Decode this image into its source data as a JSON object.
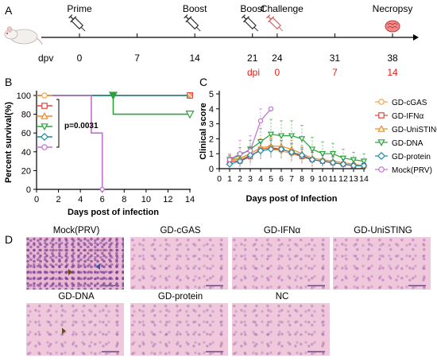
{
  "panels": {
    "a": "A",
    "b": "B",
    "c": "C",
    "d": "D"
  },
  "timeline": {
    "events": [
      {
        "label": "Prime",
        "day": "0"
      },
      {
        "label": "Boost",
        "day": "14"
      },
      {
        "label": "Boost",
        "day": "21"
      },
      {
        "label": "Challenge",
        "day": "24"
      },
      {
        "label": "Necropsy",
        "day": "38"
      }
    ],
    "dpv_label": "dpv",
    "dpv_ticks": [
      "0",
      "7",
      "14",
      "21",
      "24",
      "31",
      "38"
    ],
    "dpi_label": "dpi",
    "dpi_ticks": [
      "0",
      "7",
      "14"
    ],
    "accent": "#e0201a"
  },
  "survival": {
    "ylabel": "Percent survival(%)",
    "xlabel": "Days post of infection",
    "p_value": "p=0.0031",
    "yticks": [
      "0",
      "20",
      "40",
      "60",
      "80",
      "100"
    ],
    "xticks": [
      "0",
      "2",
      "4",
      "6",
      "8",
      "10",
      "12",
      "14"
    ]
  },
  "clinical": {
    "ylabel": "Clinical score",
    "xlabel": "Days post of Infection",
    "yticks": [
      "0",
      "1",
      "2",
      "3",
      "4",
      "5"
    ],
    "xticks": [
      "0",
      "1",
      "2",
      "3",
      "4",
      "5",
      "6",
      "7",
      "8",
      "9",
      "10",
      "11",
      "12",
      "13",
      "14"
    ],
    "legend": [
      {
        "name": "GD-cGAS",
        "color": "#f2a23a",
        "marker": "circle"
      },
      {
        "name": "GD-IFNα",
        "color": "#e0443c",
        "marker": "square"
      },
      {
        "name": "GD-UniSTING",
        "color": "#f08a1a",
        "marker": "triangle-up"
      },
      {
        "name": "GD-DNA",
        "color": "#2aa43a",
        "marker": "triangle-down"
      },
      {
        "name": "GD-protein",
        "color": "#1a8aa8",
        "marker": "diamond"
      },
      {
        "name": "Mock(PRV)",
        "color": "#c070d0",
        "marker": "circle"
      }
    ]
  },
  "histology": {
    "titles": [
      "Mock(PRV)",
      "GD-cGAS",
      "GD-IFNα",
      "GD-UniSTING",
      "GD-DNA",
      "GD-protein",
      "NC"
    ]
  },
  "chart_data": [
    {
      "type": "line",
      "title": "",
      "xlabel": "Days post of infection",
      "ylabel": "Percent survival(%)",
      "xlim": [
        0,
        14
      ],
      "ylim": [
        0,
        100
      ],
      "series": [
        {
          "color": "#f2a23a",
          "x": [
            0,
            14
          ],
          "y": [
            100,
            100
          ]
        },
        {
          "color": "#e0443c",
          "x": [
            0,
            14
          ],
          "y": [
            100,
            100
          ]
        },
        {
          "color": "#f08a1a",
          "x": [
            0,
            14
          ],
          "y": [
            100,
            100
          ]
        },
        {
          "color": "#2aa43a",
          "x": [
            0,
            7,
            7,
            14
          ],
          "y": [
            100,
            100,
            80,
            80
          ]
        },
        {
          "color": "#1a8aa8",
          "x": [
            0,
            14
          ],
          "y": [
            100,
            100
          ]
        },
        {
          "color": "#c070d0",
          "x": [
            0,
            5,
            5,
            6,
            6
          ],
          "y": [
            100,
            100,
            60,
            60,
            0
          ]
        }
      ],
      "annotation": "p=0.0031"
    },
    {
      "type": "line",
      "title": "",
      "xlabel": "Days post of Infection",
      "ylabel": "Clinical score",
      "xlim": [
        0,
        14
      ],
      "ylim": [
        0,
        5
      ],
      "series": [
        {
          "name": "GD-cGAS",
          "color": "#f2a23a",
          "x": [
            1,
            2,
            3,
            4,
            5,
            6,
            7,
            8,
            9,
            10,
            11,
            12,
            13,
            14
          ],
          "y": [
            0.6,
            0.6,
            0.9,
            1.2,
            1.3,
            1.2,
            1.0,
            0.8,
            0.6,
            0.5,
            0.4,
            0.3,
            0.2,
            0.2
          ],
          "err": [
            0.3,
            0.4,
            0.5,
            0.6,
            0.6,
            0.6,
            0.6,
            0.5,
            0.5,
            0.4,
            0.4,
            0.3,
            0.2,
            0.2
          ]
        },
        {
          "name": "GD-IFNα",
          "color": "#e0443c",
          "x": [
            1,
            2,
            3,
            4,
            5,
            6,
            7,
            8,
            9,
            10,
            11,
            12,
            13,
            14
          ],
          "y": [
            0.5,
            0.5,
            0.8,
            1.3,
            1.4,
            1.3,
            1.1,
            0.8,
            0.6,
            0.5,
            0.4,
            0.3,
            0.2,
            0.2
          ],
          "err": [
            0.3,
            0.4,
            0.5,
            0.6,
            0.6,
            0.6,
            0.6,
            0.5,
            0.5,
            0.4,
            0.4,
            0.3,
            0.2,
            0.2
          ]
        },
        {
          "name": "GD-UniSTING",
          "color": "#f08a1a",
          "x": [
            1,
            2,
            3,
            4,
            5,
            6,
            7,
            8,
            9,
            10,
            11,
            12,
            13,
            14
          ],
          "y": [
            0.6,
            0.7,
            1.0,
            1.4,
            1.5,
            1.5,
            1.3,
            1.0,
            0.7,
            0.6,
            0.5,
            0.4,
            0.3,
            0.2
          ],
          "err": [
            0.3,
            0.4,
            0.5,
            0.6,
            0.6,
            0.6,
            0.6,
            0.5,
            0.5,
            0.4,
            0.4,
            0.3,
            0.2,
            0.2
          ]
        },
        {
          "name": "GD-DNA",
          "color": "#2aa43a",
          "x": [
            1,
            2,
            3,
            4,
            5,
            6,
            7,
            8,
            9,
            10,
            11,
            12,
            13,
            14
          ],
          "y": [
            0.6,
            0.9,
            1.3,
            1.8,
            2.3,
            2.2,
            2.2,
            2.0,
            1.3,
            1.0,
            1.0,
            0.7,
            0.6,
            0.5
          ],
          "err": [
            0.3,
            0.5,
            0.6,
            0.9,
            1.0,
            1.0,
            1.0,
            0.9,
            0.8,
            0.8,
            0.7,
            0.6,
            0.5,
            0.5
          ]
        },
        {
          "name": "GD-protein",
          "color": "#1a8aa8",
          "x": [
            1,
            2,
            3,
            4,
            5,
            6,
            7,
            8,
            9,
            10,
            11,
            12,
            13,
            14
          ],
          "y": [
            0.3,
            0.5,
            0.9,
            1.2,
            1.3,
            1.3,
            1.1,
            0.9,
            0.6,
            0.5,
            0.4,
            0.3,
            0.2,
            0.2
          ],
          "err": [
            0.3,
            0.4,
            0.5,
            0.6,
            0.6,
            0.6,
            0.6,
            0.5,
            0.5,
            0.4,
            0.4,
            0.3,
            0.2,
            0.2
          ]
        },
        {
          "name": "Mock(PRV)",
          "color": "#c070d0",
          "x": [
            1,
            2,
            3,
            4,
            5
          ],
          "y": [
            0.6,
            1.0,
            1.2,
            3.2,
            4.0
          ],
          "err": [
            0.4,
            0.9,
            1.0,
            0.8,
            0.0
          ]
        }
      ],
      "legend_position": "right"
    }
  ]
}
